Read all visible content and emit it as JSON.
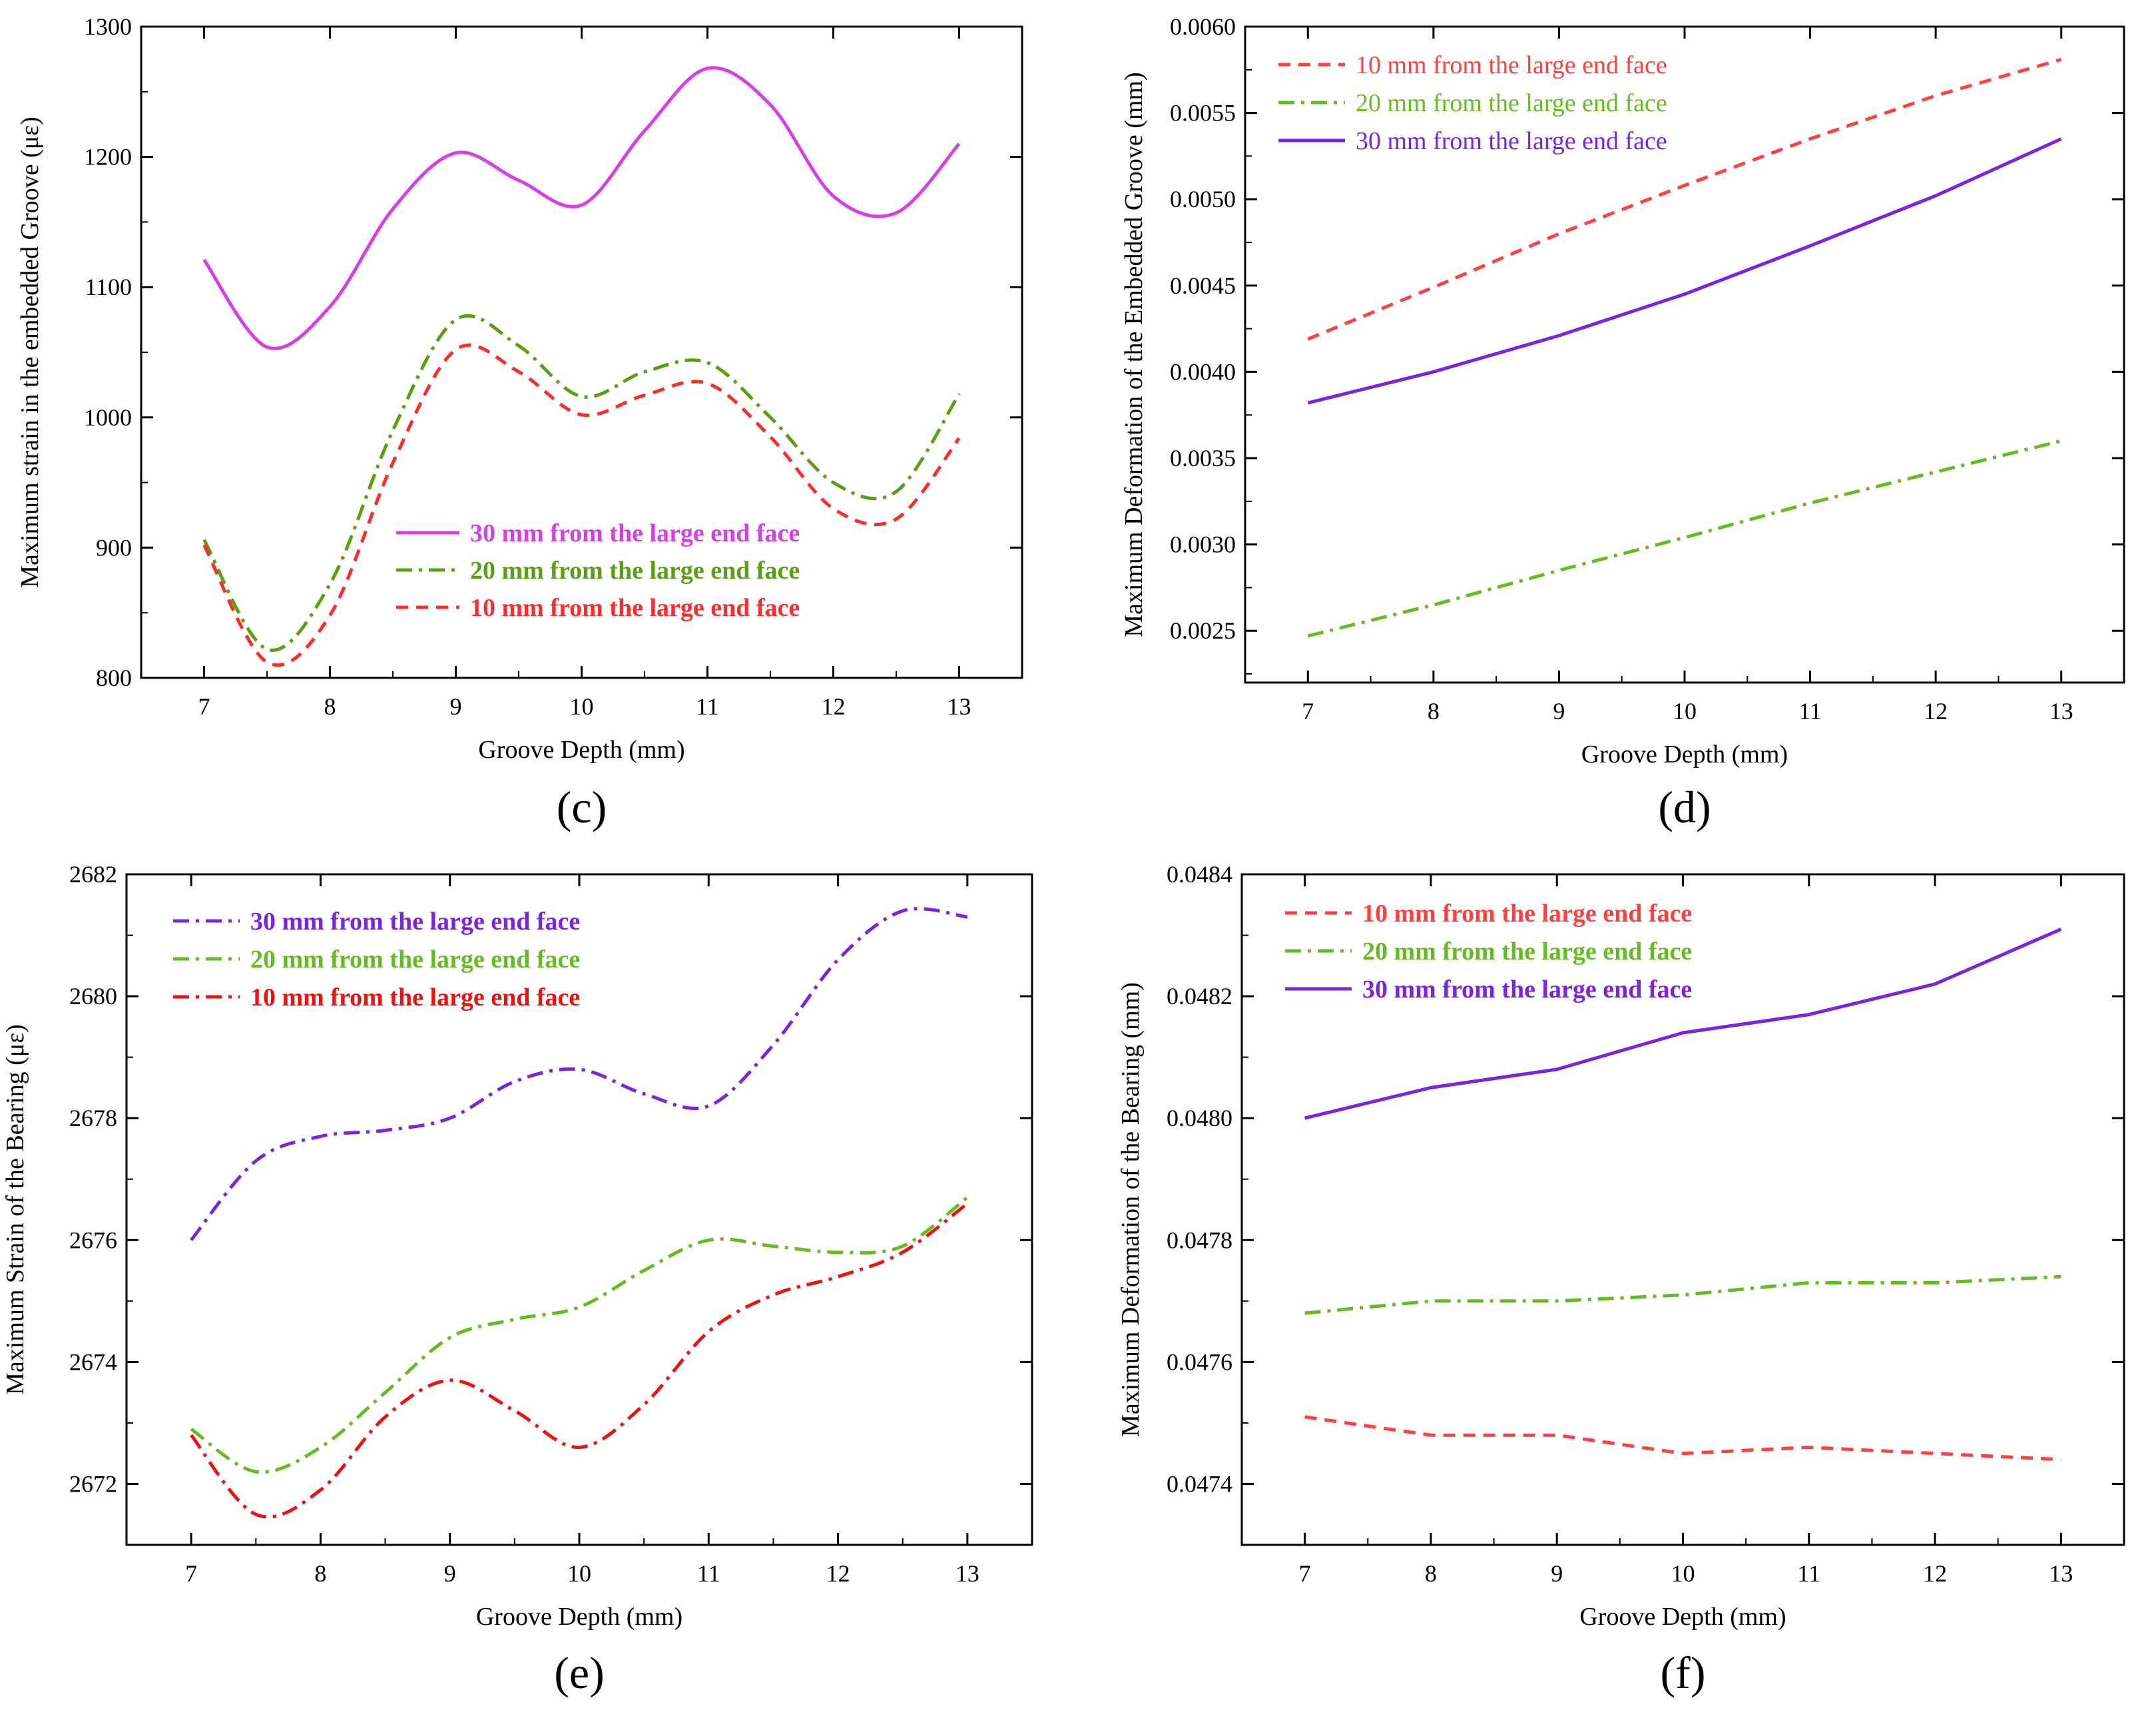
{
  "figure": {
    "panels": [
      {
        "id": "c",
        "panel_label": "(c)"
      },
      {
        "id": "d",
        "panel_label": "(d)"
      },
      {
        "id": "e",
        "panel_label": "(e)"
      },
      {
        "id": "f",
        "panel_label": "(f)"
      }
    ]
  },
  "chart_data": [
    {
      "id": "c",
      "type": "line",
      "panel_label": "(c)",
      "xlabel": "Groove Depth (mm)",
      "ylabel": "Maximum strain in the embedded Groove (με)",
      "xlim": [
        6.5,
        13.5
      ],
      "ylim": [
        800,
        1300
      ],
      "xticks": [
        7,
        8,
        9,
        10,
        11,
        12,
        13
      ],
      "yticks": [
        800,
        900,
        1000,
        1100,
        1200,
        1300
      ],
      "ytick_labels": [
        "800",
        "900",
        "1000",
        "1100",
        "1200",
        "1300"
      ],
      "grid": false,
      "legend_position": "center-right",
      "legend_bold": true,
      "series": [
        {
          "name": "30 mm from the large end face",
          "color": "#d63fe6",
          "dash": "solid",
          "x": [
            7,
            7.5,
            8,
            8.5,
            9,
            9.5,
            10,
            10.5,
            11,
            11.5,
            12,
            12.5,
            13
          ],
          "values": [
            1121,
            1054,
            1085,
            1160,
            1203,
            1182,
            1163,
            1220,
            1268,
            1240,
            1170,
            1157,
            1210
          ]
        },
        {
          "name": "20 mm from the large end face",
          "color": "#5a9e12",
          "dash": "dashdot",
          "x": [
            7,
            7.5,
            8,
            8.5,
            9,
            9.5,
            10,
            10.5,
            11,
            11.5,
            12,
            12.5,
            13
          ],
          "values": [
            906,
            822,
            872,
            990,
            1075,
            1055,
            1016,
            1035,
            1042,
            1000,
            950,
            943,
            1018
          ]
        },
        {
          "name": "10 mm from the large end face",
          "color": "#ff2a2a",
          "dash": "dash",
          "x": [
            7,
            7.5,
            8,
            8.5,
            9,
            9.5,
            10,
            10.5,
            11,
            11.5,
            12,
            12.5,
            13
          ],
          "values": [
            902,
            812,
            848,
            965,
            1052,
            1035,
            1002,
            1017,
            1026,
            985,
            930,
            922,
            984
          ]
        }
      ]
    },
    {
      "id": "d",
      "type": "line",
      "panel_label": "(d)",
      "xlabel": "Groove Depth (mm)",
      "ylabel": "Maximum Deformation of the Embedded Groove (mm)",
      "xlim": [
        6.5,
        13.5
      ],
      "ylim": [
        0.0022,
        0.006
      ],
      "xticks": [
        7,
        8,
        9,
        10,
        11,
        12,
        13
      ],
      "yticks": [
        0.0025,
        0.003,
        0.0035,
        0.004,
        0.0045,
        0.005,
        0.0055,
        0.006
      ],
      "ytick_labels": [
        "0.0025",
        "0.0030",
        "0.0035",
        "0.0040",
        "0.0045",
        "0.0050",
        "0.0055",
        "0.0060"
      ],
      "grid": false,
      "legend_position": "top-left",
      "legend_bold": false,
      "series": [
        {
          "name": "10 mm from the large end face",
          "color": "#ff4040",
          "dash": "dash",
          "x": [
            7,
            8,
            9,
            10,
            11,
            12,
            13
          ],
          "values": [
            0.00419,
            0.00449,
            0.0048,
            0.00508,
            0.00535,
            0.0056,
            0.00581
          ]
        },
        {
          "name": "20 mm from the large end face",
          "color": "#66bb22",
          "dash": "dashdot",
          "x": [
            7,
            8,
            9,
            10,
            11,
            12,
            13
          ],
          "values": [
            0.00247,
            0.00265,
            0.00285,
            0.00304,
            0.00324,
            0.00342,
            0.0036
          ]
        },
        {
          "name": "30 mm from the large end face",
          "color": "#7a24e0",
          "dash": "solid",
          "x": [
            7,
            8,
            9,
            10,
            11,
            12,
            13
          ],
          "values": [
            0.00382,
            0.004,
            0.00421,
            0.00445,
            0.00473,
            0.00502,
            0.00535
          ]
        }
      ]
    },
    {
      "id": "e",
      "type": "line",
      "panel_label": "(e)",
      "xlabel": "Groove Depth (mm)",
      "ylabel": "Maximum Strain of the Bearing (με)",
      "xlim": [
        6.5,
        13.5
      ],
      "ylim": [
        2671,
        2682
      ],
      "xticks": [
        7,
        8,
        9,
        10,
        11,
        12,
        13
      ],
      "yticks": [
        2672,
        2674,
        2676,
        2678,
        2680,
        2682
      ],
      "ytick_labels": [
        "2672",
        "2674",
        "2676",
        "2678",
        "2680",
        "2682"
      ],
      "grid": false,
      "legend_position": "top-left",
      "legend_bold": true,
      "series": [
        {
          "name": "30 mm from the large end face",
          "color": "#7a24e0",
          "dash": "dashdot",
          "x": [
            7,
            7.5,
            8,
            8.5,
            9,
            9.5,
            10,
            10.5,
            11,
            11.5,
            12,
            12.5,
            13
          ],
          "values": [
            2676.0,
            2677.3,
            2677.7,
            2677.8,
            2678.0,
            2678.6,
            2678.8,
            2678.4,
            2678.2,
            2679.2,
            2680.6,
            2681.4,
            2681.3
          ]
        },
        {
          "name": "20 mm from the large end face",
          "color": "#66bb22",
          "dash": "dashdot",
          "x": [
            7,
            7.5,
            8,
            8.5,
            9,
            9.5,
            10,
            10.5,
            11,
            11.5,
            12,
            12.5,
            13
          ],
          "values": [
            2672.9,
            2672.2,
            2672.6,
            2673.5,
            2674.4,
            2674.7,
            2674.9,
            2675.5,
            2676.0,
            2675.9,
            2675.8,
            2675.9,
            2676.7
          ]
        },
        {
          "name": "10 mm from the large end face",
          "color": "#ee1111",
          "dash": "dashdot",
          "x": [
            7,
            7.5,
            8,
            8.5,
            9,
            9.5,
            10,
            10.5,
            11,
            11.5,
            12,
            12.5,
            13
          ],
          "values": [
            2672.8,
            2671.5,
            2671.9,
            2673.1,
            2673.7,
            2673.2,
            2672.6,
            2673.3,
            2674.5,
            2675.1,
            2675.4,
            2675.8,
            2676.6
          ]
        }
      ]
    },
    {
      "id": "f",
      "type": "line",
      "panel_label": "(f)",
      "xlabel": "Groove Depth (mm)",
      "ylabel": "Maximum Deformation of the Bearing (mm)",
      "xlim": [
        6.5,
        13.5
      ],
      "ylim": [
        0.0473,
        0.0484
      ],
      "xticks": [
        7,
        8,
        9,
        10,
        11,
        12,
        13
      ],
      "yticks": [
        0.0474,
        0.0476,
        0.0478,
        0.048,
        0.0482,
        0.0484
      ],
      "ytick_labels": [
        "0.0474",
        "0.0476",
        "0.0478",
        "0.0480",
        "0.0482",
        "0.0484"
      ],
      "grid": false,
      "legend_position": "top-left",
      "legend_bold": true,
      "series": [
        {
          "name": "10 mm from the large end face",
          "color": "#ff4040",
          "dash": "dash",
          "x": [
            7,
            8,
            9,
            10,
            11,
            12,
            13
          ],
          "values": [
            0.04751,
            0.04748,
            0.04748,
            0.04745,
            0.04746,
            0.04745,
            0.04744
          ]
        },
        {
          "name": "20 mm from the large end face",
          "color": "#66bb22",
          "dash": "dashdot",
          "x": [
            7,
            8,
            9,
            10,
            11,
            12,
            13
          ],
          "values": [
            0.04768,
            0.0477,
            0.0477,
            0.04771,
            0.04773,
            0.04773,
            0.04774
          ]
        },
        {
          "name": "30 mm from the large end face",
          "color": "#7a24e0",
          "dash": "solid",
          "x": [
            7,
            8,
            9,
            10,
            11,
            12,
            13
          ],
          "values": [
            0.048,
            0.04805,
            0.04808,
            0.04814,
            0.04817,
            0.04822,
            0.04831
          ]
        }
      ]
    }
  ]
}
